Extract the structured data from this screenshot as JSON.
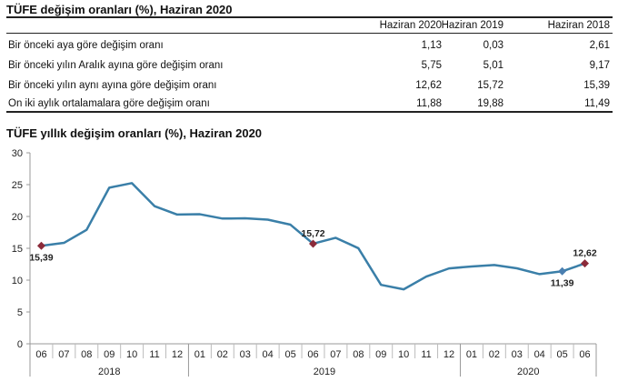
{
  "table": {
    "title": "TÜFE değişim oranları (%), Haziran 2020",
    "columns": [
      "Haziran 2020",
      "Haziran 2019",
      "Haziran 2018"
    ],
    "rows": [
      {
        "label": "Bir önceki aya göre değişim oranı",
        "values": [
          "1,13",
          "0,03",
          "2,61"
        ]
      },
      {
        "label": "Bir önceki yılın Aralık ayına göre değişim oranı",
        "values": [
          "5,75",
          "5,01",
          "9,17"
        ]
      },
      {
        "label": "Bir önceki yılın aynı ayına göre değişim oranı",
        "values": [
          "12,62",
          "15,72",
          "15,39"
        ]
      },
      {
        "label": "On iki aylık ortalamalara göre değişim oranı",
        "values": [
          "11,88",
          "19,88",
          "11,49"
        ]
      }
    ]
  },
  "chart_data": {
    "type": "line",
    "title": "TÜFE yıllık değişim oranları (%), Haziran 2020",
    "categories": [
      "06",
      "07",
      "08",
      "09",
      "10",
      "11",
      "12",
      "01",
      "02",
      "03",
      "04",
      "05",
      "06",
      "07",
      "08",
      "09",
      "10",
      "11",
      "12",
      "01",
      "02",
      "03",
      "04",
      "05",
      "06"
    ],
    "years": [
      {
        "label": "2018",
        "span": 7
      },
      {
        "label": "2019",
        "span": 12
      },
      {
        "label": "2020",
        "span": 6
      }
    ],
    "values": [
      15.39,
      15.85,
      17.9,
      24.52,
      25.24,
      21.62,
      20.3,
      20.35,
      19.67,
      19.71,
      19.5,
      18.71,
      15.72,
      16.65,
      15.01,
      9.26,
      8.55,
      10.56,
      11.84,
      12.15,
      12.37,
      11.86,
      10.94,
      11.39,
      12.62
    ],
    "ylim": [
      0,
      30
    ],
    "yticks": [
      0,
      5,
      10,
      15,
      20,
      25,
      30
    ],
    "grid": false,
    "line_color": "#3a7fa8",
    "annotations": [
      {
        "index": 0,
        "label": "15,39",
        "marker_color": "#8b2b3a",
        "position": "below"
      },
      {
        "index": 12,
        "label": "15,72",
        "marker_color": "#8b2b3a",
        "position": "above"
      },
      {
        "index": 23,
        "label": "11,39",
        "marker_color": "#4a7fb0",
        "position": "below"
      },
      {
        "index": 24,
        "label": "12,62",
        "marker_color": "#8b2b3a",
        "position": "above"
      }
    ]
  }
}
